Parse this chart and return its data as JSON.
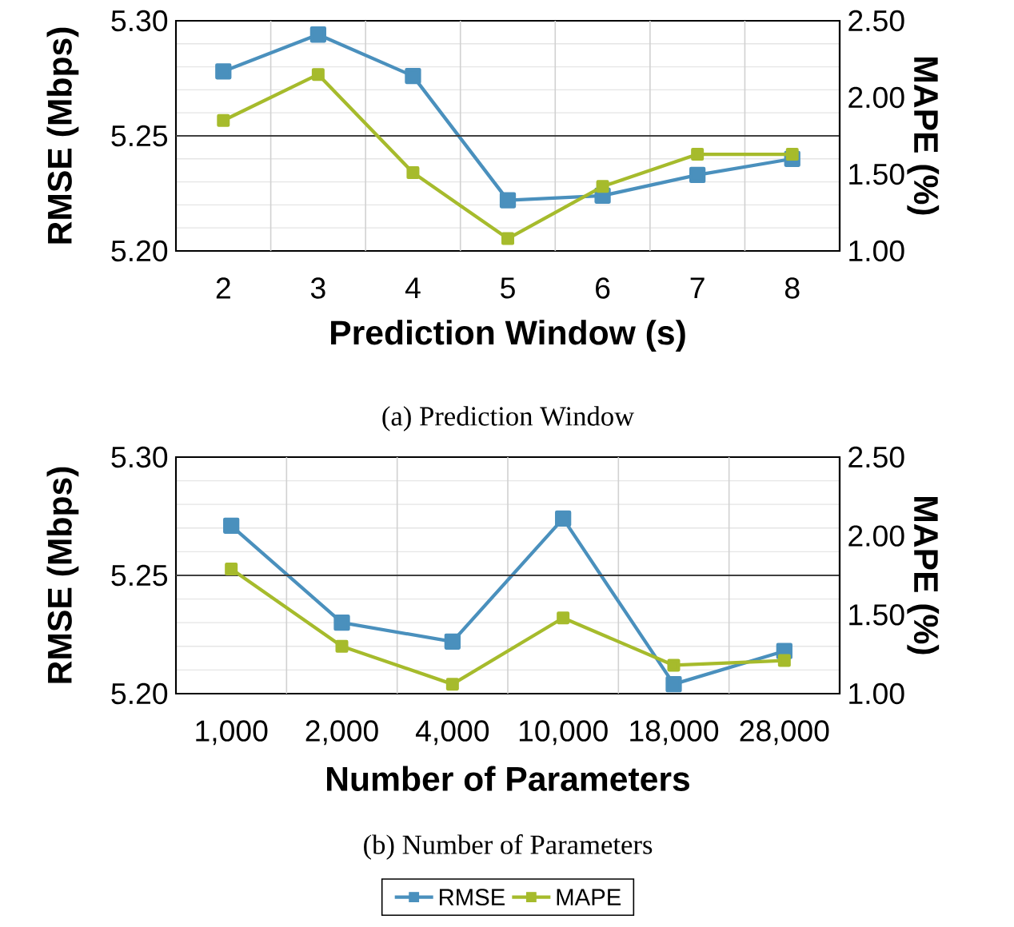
{
  "chart_data": [
    {
      "type": "line",
      "categories": [
        "2",
        "3",
        "4",
        "5",
        "6",
        "7",
        "8"
      ],
      "series": [
        {
          "color": "#4a90bd",
          "values": [
            5.278,
            5.294,
            5.276,
            5.222,
            5.224,
            5.233,
            5.24
          ]
        },
        {
          "color": "#a6bb2c",
          "values": [
            1.85,
            2.15,
            1.51,
            1.08,
            1.42,
            1.63,
            1.63
          ],
          "axis": "y2"
        }
      ],
      "ylim": [
        5.2,
        5.3
      ],
      "yticks": [
        {
          "value": 5.2,
          "label": "5.20"
        },
        {
          "value": 5.25,
          "label": "5.25"
        },
        {
          "value": 5.3,
          "label": "5.30"
        }
      ],
      "y2lim": [
        1.0,
        2.5
      ],
      "y2ticks": [
        {
          "value": 1.0,
          "label": "1.00"
        },
        {
          "value": 1.5,
          "label": "1.50"
        },
        {
          "value": 2.0,
          "label": "2.00"
        },
        {
          "value": 2.5,
          "label": "2.50"
        }
      ],
      "xlabel": "Prediction Window (s)",
      "ylabel": "RMSE (Mbps)",
      "y2label": "MAPE (%)",
      "annotations": [
        "(a) Prediction Window"
      ],
      "grid": true,
      "marker": "square",
      "ref_lines": [
        {
          "axis": "y",
          "value": 5.25,
          "color": "#404040"
        }
      ]
    },
    {
      "type": "line",
      "categories": [
        "1,000",
        "2,000",
        "4,000",
        "10,000",
        "18,000",
        "28,000"
      ],
      "series": [
        {
          "name": "RMSE",
          "color": "#4a90bd",
          "values": [
            5.271,
            5.23,
            5.222,
            5.274,
            5.204,
            5.218
          ]
        },
        {
          "name": "MAPE",
          "color": "#a6bb2c",
          "values": [
            1.79,
            1.3,
            1.06,
            1.48,
            1.18,
            1.21
          ],
          "axis": "y2"
        }
      ],
      "ylim": [
        5.2,
        5.3
      ],
      "yticks": [
        {
          "value": 5.2,
          "label": "5.20"
        },
        {
          "value": 5.25,
          "label": "5.25"
        },
        {
          "value": 5.3,
          "label": "5.30"
        }
      ],
      "y2lim": [
        1.0,
        2.5
      ],
      "y2ticks": [
        {
          "value": 1.0,
          "label": "1.00"
        },
        {
          "value": 1.5,
          "label": "1.50"
        },
        {
          "value": 2.0,
          "label": "2.00"
        },
        {
          "value": 2.5,
          "label": "2.50"
        }
      ],
      "xlabel": "Number of Parameters",
      "ylabel": "RMSE (Mbps)",
      "y2label": "MAPE (%)",
      "annotations": [
        "(b) Number of Parameters"
      ],
      "grid": true,
      "marker": "square",
      "legend": "bottom",
      "ref_lines": [
        {
          "axis": "y",
          "value": 5.25,
          "color": "#404040"
        }
      ]
    }
  ]
}
